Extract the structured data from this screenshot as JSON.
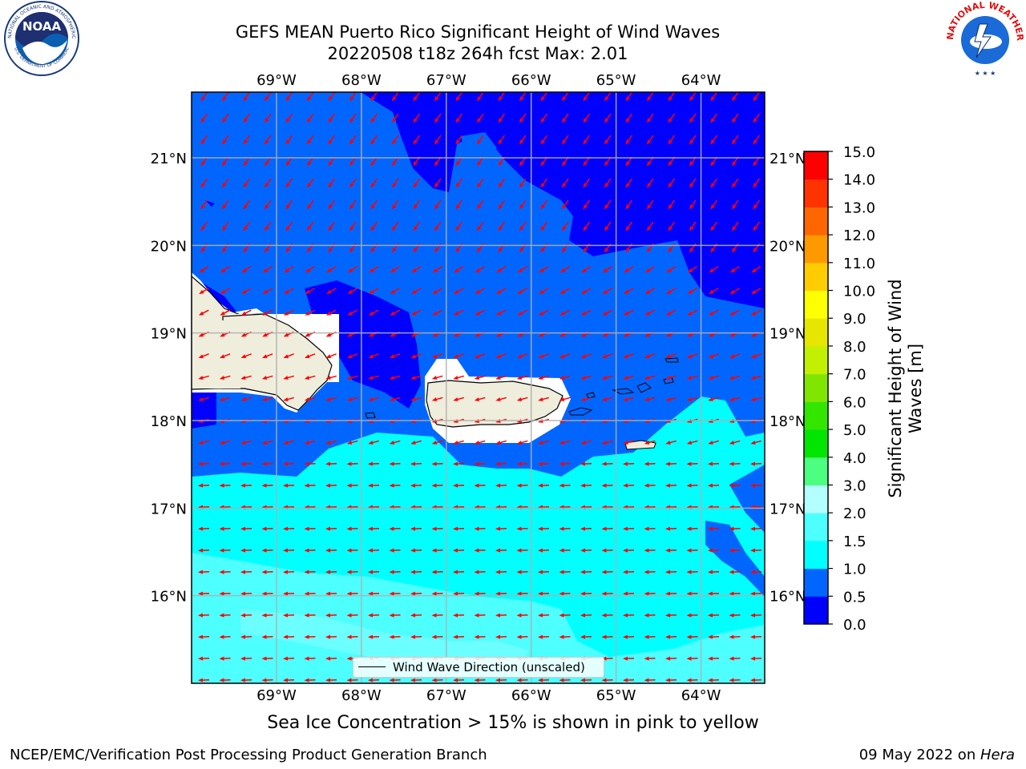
{
  "title": {
    "line1": "GEFS MEAN Puerto Rico Significant Height of Wind Waves",
    "line2": "20220508 t18z 264h fcst   Max: 2.01"
  },
  "map": {
    "lon_ticks": [
      "69°W",
      "68°W",
      "67°W",
      "66°W",
      "65°W",
      "64°W"
    ],
    "lat_ticks": [
      "21°N",
      "20°N",
      "19°N",
      "18°N",
      "17°N",
      "16°N"
    ],
    "lon_range": [
      -70.0,
      -63.25
    ],
    "lat_range": [
      15.0,
      21.75
    ],
    "background_color": "#0066ff"
  },
  "legend": {
    "label": "Wind Wave Direction (unscaled)"
  },
  "colorbar": {
    "label": "Significant Height of Wind Waves [m]",
    "ticks": [
      "0.0",
      "0.5",
      "1.0",
      "1.5",
      "2.0",
      "3.0",
      "4.0",
      "5.0",
      "6.0",
      "7.0",
      "8.0",
      "9.0",
      "10.0",
      "11.0",
      "12.0",
      "13.0",
      "14.0",
      "15.0"
    ],
    "colors": [
      "#0000ff",
      "#0066ff",
      "#00ffff",
      "#4dffff",
      "#b3ffff",
      "#4dff80",
      "#00e600",
      "#33e600",
      "#80e600",
      "#c3f000",
      "#e6e600",
      "#ffff00",
      "#ffcc00",
      "#ff9900",
      "#ff6600",
      "#ff3300",
      "#ff0000"
    ]
  },
  "note": "Sea Ice Concentration > 15% is shown in pink to yellow",
  "footer": {
    "left": "NCEP/EMC/Verification Post Processing Product Generation Branch",
    "right_date": "09 May 2022 on ",
    "right_host": "Hera"
  },
  "logos": {
    "left": "NOAA",
    "right": "NATIONAL WEATHER SERVICE"
  },
  "arrow_color": "#ff0000"
}
